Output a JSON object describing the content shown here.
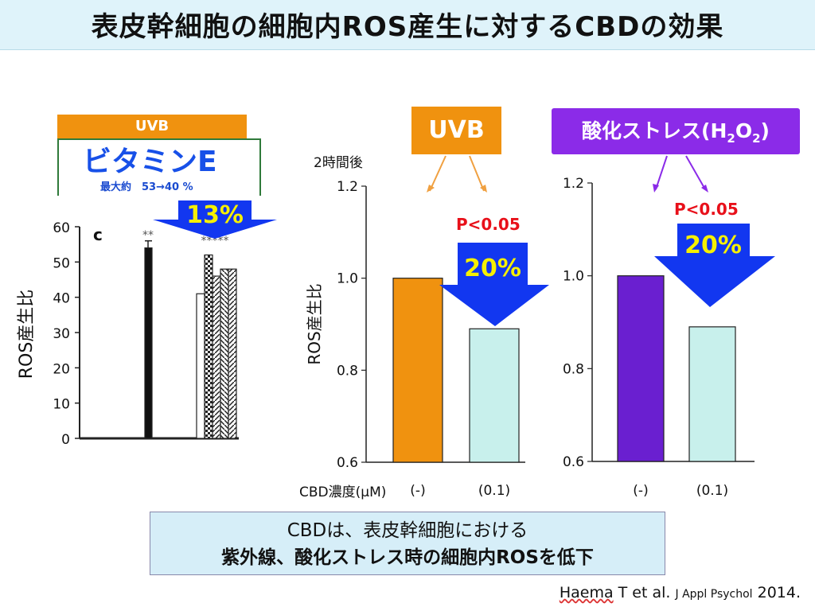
{
  "title": "表皮幹細胞の細胞内ROS産生に対するCBDの効果",
  "left_panel": {
    "uvb_label": "UVB",
    "vitamin_label": "ビタミンE",
    "vitamin_sub": "最大約　53→40 %",
    "reduction": "13%",
    "panel_letter": "c",
    "ylabel": "ROS産生比",
    "yticks": [
      "60",
      "50",
      "40",
      "30",
      "20",
      "10",
      "0"
    ],
    "sig_marks": [
      "**",
      "*****"
    ]
  },
  "uvb_box_label": "UVB",
  "h2o2_box_label_main": "酸化ストレス(H",
  "h2o2_sub1": "2",
  "h2o2_mid": "O",
  "h2o2_sub2": "2",
  "h2o2_end": ")",
  "time_label": "2時間後",
  "cbd_label": "CBD濃度(μM)",
  "pval_label": "P<0.05",
  "pct_label": "20%",
  "summary_line1": "CBDは、表皮幹細胞における",
  "summary_line2": "紫外線、酸化ストレス時の細胞内ROSを低下",
  "citation_author": "Haema",
  "citation_rest": " T et al. ",
  "citation_journal": "J Appl Psychol",
  "citation_year": " 2014.",
  "chart_data": [
    {
      "type": "bar",
      "categories": [
        "(-)",
        "(0.1)"
      ],
      "values": [
        1.0,
        0.89
      ],
      "colors": [
        "#f0920f",
        "#c8f0ec"
      ],
      "ylabel": "ROS産生比",
      "ylim": [
        0.6,
        1.2
      ],
      "yticks": [
        0.6,
        0.8,
        1.0,
        1.2
      ],
      "ytick_labels": [
        "0.6",
        "0.8",
        "1.0",
        "1.2"
      ]
    },
    {
      "type": "bar",
      "categories": [
        "(-)",
        "(0.1)"
      ],
      "values": [
        1.0,
        0.89
      ],
      "colors": [
        "#6a1fd0",
        "#c8f0ec"
      ],
      "ylim": [
        0.6,
        1.2
      ],
      "yticks": [
        0.6,
        0.8,
        1.0,
        1.2
      ],
      "ytick_labels": [
        "0.6",
        "0.8",
        "1.0",
        "1.2"
      ]
    },
    {
      "type": "bar",
      "categories": [
        "",
        "",
        "",
        "",
        "",
        ""
      ],
      "values": [
        54,
        41,
        52,
        46,
        48,
        48
      ],
      "ylim": [
        0,
        60
      ],
      "ytick_labels": [
        "60",
        "50",
        "40",
        "30",
        "20",
        "10",
        "0"
      ]
    }
  ]
}
